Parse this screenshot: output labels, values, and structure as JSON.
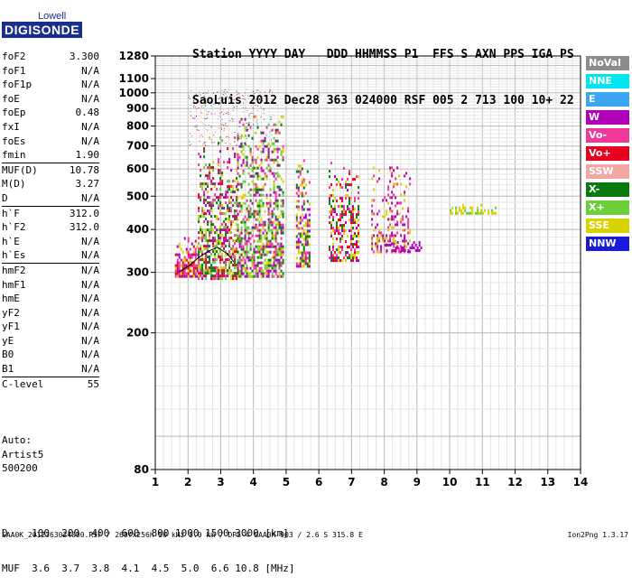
{
  "logo": {
    "line1": "Lowell",
    "line2": "DIGISONDE"
  },
  "header": {
    "row1": "Station YYYY DAY   DDD HHMMSS P1  FFS S AXN PPS IGA PS",
    "row2": "SaoLuis 2012 Dec28 363 024000 RSF 005 2 713 100 10+ 22"
  },
  "params": [
    {
      "name": "foF2",
      "value": "3.300"
    },
    {
      "name": "foF1",
      "value": "N/A"
    },
    {
      "name": "foF1p",
      "value": "N/A"
    },
    {
      "name": "foE",
      "value": "N/A"
    },
    {
      "name": "foEp",
      "value": "0.48"
    },
    {
      "name": "fxI",
      "value": "N/A"
    },
    {
      "name": "foEs",
      "value": "N/A"
    },
    {
      "name": "fmin",
      "value": "1.90"
    },
    {
      "name": "MUF(D)",
      "value": "10.78",
      "sep": true
    },
    {
      "name": "M(D)",
      "value": "3.27"
    },
    {
      "name": "D",
      "value": "N/A"
    },
    {
      "name": "h`F",
      "value": "312.0",
      "sep": true
    },
    {
      "name": "h`F2",
      "value": "312.0"
    },
    {
      "name": "h`E",
      "value": "N/A"
    },
    {
      "name": "h`Es",
      "value": "N/A"
    },
    {
      "name": "hmF2",
      "value": "N/A",
      "sep": true
    },
    {
      "name": "hmF1",
      "value": "N/A"
    },
    {
      "name": "hmE",
      "value": "N/A"
    },
    {
      "name": "yF2",
      "value": "N/A"
    },
    {
      "name": "yF1",
      "value": "N/A"
    },
    {
      "name": "yE",
      "value": "N/A"
    },
    {
      "name": "B0",
      "value": "N/A"
    },
    {
      "name": "B1",
      "value": "N/A"
    },
    {
      "name": "C-level",
      "value": "55",
      "sep": true
    }
  ],
  "auto": {
    "line1": "Auto:",
    "line2": "Artist5",
    "line3": "500200"
  },
  "legend": [
    {
      "label": "NoVal",
      "color": "#8c8c8c"
    },
    {
      "label": "NNE",
      "color": "#00e5f0"
    },
    {
      "label": "E",
      "color": "#3aa6f0"
    },
    {
      "label": "W",
      "color": "#b000b8"
    },
    {
      "label": "Vo-",
      "color": "#f0379a"
    },
    {
      "label": "Vo+",
      "color": "#e8001e"
    },
    {
      "label": "SSW",
      "color": "#f2a7a2"
    },
    {
      "label": "X-",
      "color": "#0a7a10"
    },
    {
      "label": "X+",
      "color": "#6ccf3a"
    },
    {
      "label": "SSE",
      "color": "#d8d200"
    },
    {
      "label": "NNW",
      "color": "#1a1ad8"
    }
  ],
  "footer": {
    "row1": "D    100  200  400  600  800 1000 1500 3000 [km]",
    "row2": "MUF  3.6  3.7  3.8  4.1  4.5  5.0  6.6 10.8 [MHz]",
    "row3": "SAA0K_2012363024000.RSF / 260fx256h 50 kHz 5.0 km / DPS-4 SAA0K 903 / 2.6 S 315.8 E",
    "version": "Ion2Png 1.3.17"
  },
  "chart_data": {
    "type": "scatter",
    "xlim": [
      1,
      14
    ],
    "ylim": [
      80,
      1280
    ],
    "xticks": [
      1,
      2,
      3,
      4,
      5,
      6,
      7,
      8,
      9,
      10,
      11,
      12,
      13,
      14
    ],
    "yticks": [
      80,
      200,
      300,
      400,
      500,
      600,
      700,
      800,
      900,
      1000,
      1100,
      1280
    ],
    "grid": true,
    "yscale": "log",
    "legend_placement": "right",
    "clusters": [
      {
        "x": [
          1.6,
          2.3
        ],
        "y": [
          290,
          380
        ],
        "colors": [
          "#f0379a",
          "#b000b8",
          "#d8d200",
          "#e8001e"
        ],
        "density": 1.0
      },
      {
        "x": [
          2.3,
          3.5
        ],
        "y": [
          290,
          760
        ],
        "colors": [
          "#f0379a",
          "#b000b8",
          "#d8d200",
          "#0a7a10",
          "#e8001e",
          "#6ccf3a"
        ],
        "density": 0.7
      },
      {
        "x": [
          3.5,
          4.9
        ],
        "y": [
          290,
          860
        ],
        "colors": [
          "#d8d200",
          "#b000b8",
          "#f0379a",
          "#0a7a10",
          "#6ccf3a"
        ],
        "density": 0.75
      },
      {
        "x": [
          5.3,
          5.7
        ],
        "y": [
          310,
          640
        ],
        "colors": [
          "#b000b8",
          "#d8d200",
          "#f0379a",
          "#0a7a10"
        ],
        "density": 0.8
      },
      {
        "x": [
          6.3,
          7.2
        ],
        "y": [
          325,
          630
        ],
        "colors": [
          "#b000b8",
          "#d8d200",
          "#f0379a",
          "#e8001e",
          "#0a7a10"
        ],
        "density": 0.6
      },
      {
        "x": [
          7.6,
          8.8
        ],
        "y": [
          345,
          610
        ],
        "colors": [
          "#b000b8",
          "#d8d200",
          "#f0379a"
        ],
        "density": 0.45
      },
      {
        "x": [
          8.0,
          9.2
        ],
        "y": [
          345,
          370
        ],
        "colors": [
          "#b000b8"
        ],
        "density": 0.8
      },
      {
        "x": [
          10.0,
          11.4
        ],
        "y": [
          445,
          475
        ],
        "colors": [
          "#d8d200",
          "#6ccf3a"
        ],
        "density": 0.6
      }
    ],
    "trace": {
      "x": [
        1.7,
        2.0,
        2.3,
        2.6,
        2.9,
        3.2,
        3.4
      ],
      "y": [
        300,
        312,
        330,
        345,
        355,
        340,
        322
      ],
      "color": "#000000"
    }
  }
}
